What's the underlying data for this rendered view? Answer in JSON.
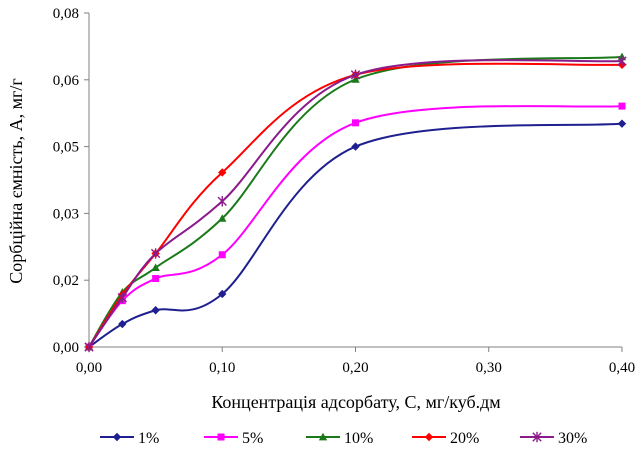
{
  "chart_data": {
    "type": "line",
    "title": "",
    "xlabel": "Концентрація адсорбату, C, мг/куб.дм",
    "ylabel": "Сорбційна ємність, A, мг/г",
    "xlim": [
      0,
      0.4
    ],
    "ylim": [
      0,
      0.08
    ],
    "x_ticks": [
      0,
      0.1,
      0.2,
      0.3,
      0.4
    ],
    "x_tick_labels": [
      "0,00",
      "0,10",
      "0,20",
      "0,30",
      "0,40"
    ],
    "y_ticks": [
      0,
      0.016,
      0.032,
      0.048,
      0.064,
      0.08
    ],
    "y_tick_labels": [
      "0,00",
      "0,02",
      "0,03",
      "0,05",
      "0,06",
      "0,08"
    ],
    "grid": false,
    "legend_position": "bottom",
    "x": [
      0,
      0.025,
      0.05,
      0.1,
      0.2,
      0.4
    ],
    "series": [
      {
        "name": "1%",
        "color": "#1f1f8f",
        "marker": "diamond",
        "values": [
          0,
          0.0055,
          0.0088,
          0.0127,
          0.048,
          0.0535
        ]
      },
      {
        "name": "5%",
        "color": "#ff00ff",
        "marker": "square",
        "values": [
          0,
          0.0111,
          0.0164,
          0.0221,
          0.0537,
          0.0577
        ]
      },
      {
        "name": "10%",
        "color": "#1a7a1a",
        "marker": "triangle",
        "values": [
          0,
          0.0131,
          0.019,
          0.0308,
          0.0641,
          0.0695
        ]
      },
      {
        "name": "20%",
        "color": "#ff0000",
        "marker": "diamond",
        "values": [
          0,
          0.0125,
          0.0224,
          0.0418,
          0.0652,
          0.0676
        ]
      },
      {
        "name": "30%",
        "color": "#8b1a8b",
        "marker": "star",
        "values": [
          0,
          0.0118,
          0.0224,
          0.0349,
          0.0652,
          0.0685
        ]
      }
    ]
  }
}
